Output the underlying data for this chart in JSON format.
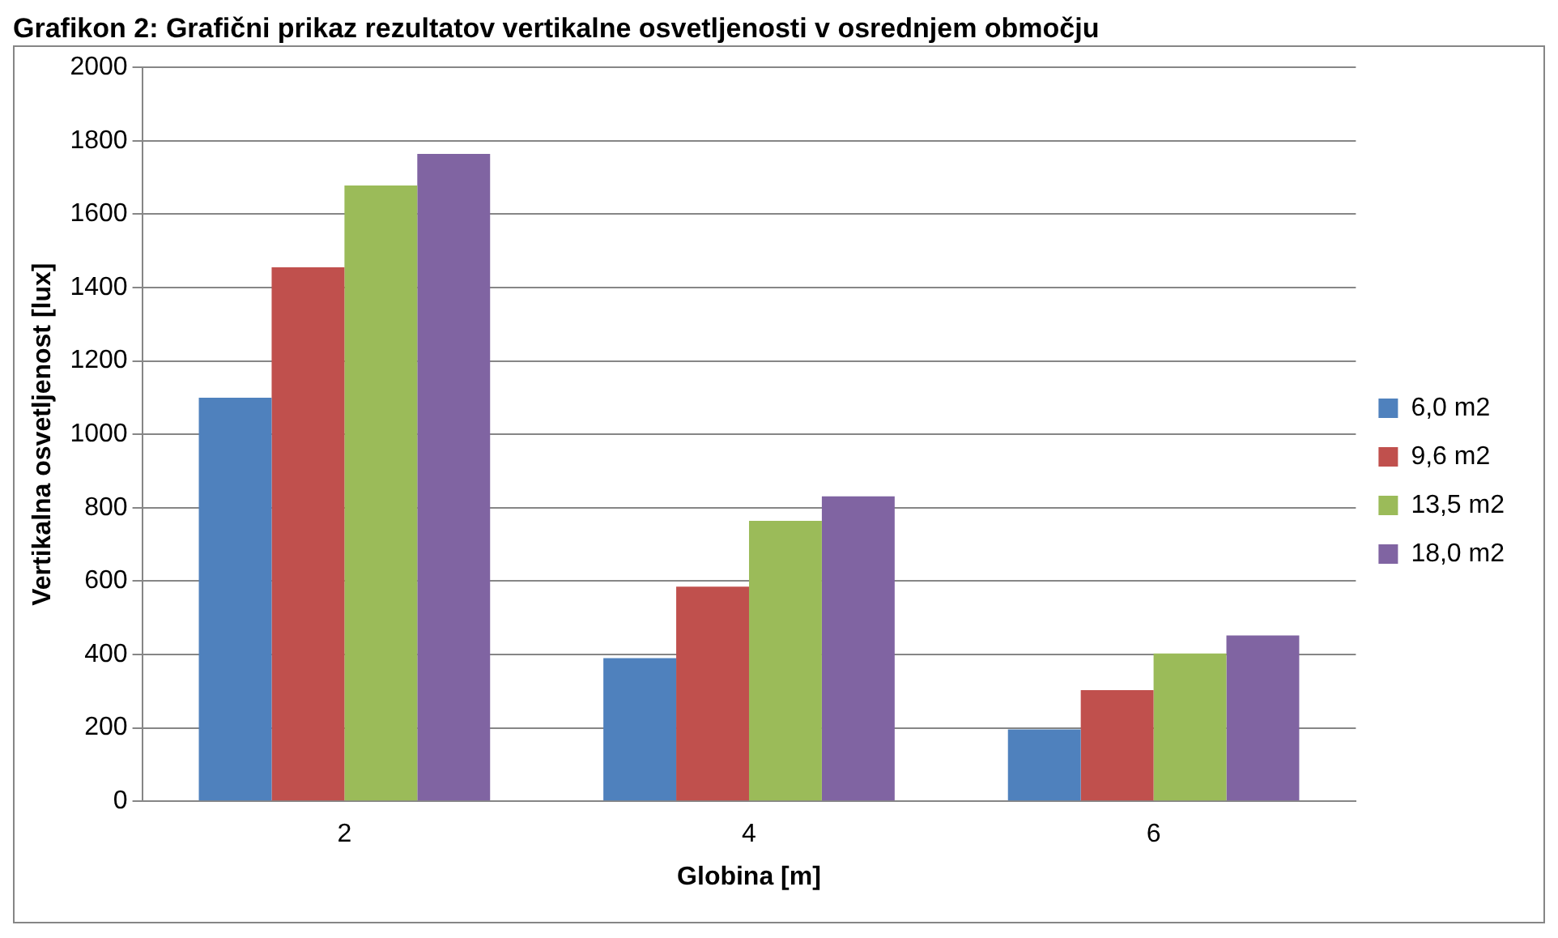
{
  "chart_data": {
    "type": "bar",
    "title": "Grafikon 2: Grafični prikaz rezultatov vertikalne osvetljenosti v osrednjem območju",
    "xlabel": "Globina [m]",
    "ylabel": "Vertikalna osvetljenost [lux]",
    "categories": [
      "2",
      "4",
      "6"
    ],
    "series": [
      {
        "name": "6,0 m2",
        "color": "#4f81bd",
        "values": [
          1100,
          390,
          196
        ]
      },
      {
        "name": "9,6 m2",
        "color": "#c0504d",
        "values": [
          1455,
          585,
          303
        ]
      },
      {
        "name": "13,5 m2",
        "color": "#9bbb59",
        "values": [
          1678,
          764,
          403
        ]
      },
      {
        "name": "18,0 m2",
        "color": "#8064a2",
        "values": [
          1764,
          831,
          452
        ]
      }
    ],
    "ylim": [
      0,
      2000
    ],
    "yticks": [
      0,
      200,
      400,
      600,
      800,
      1000,
      1200,
      1400,
      1600,
      1800,
      2000
    ],
    "grid": "y",
    "legend": "right"
  }
}
